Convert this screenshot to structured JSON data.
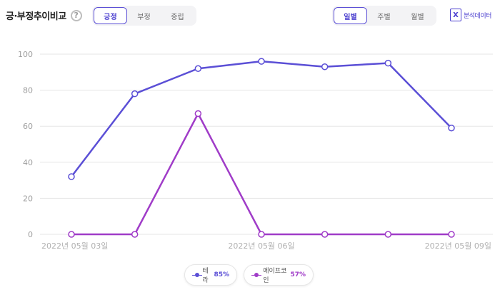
{
  "header": {
    "title": "긍·부정추이비교",
    "help_icon": "question-circle-icon",
    "sentiment_tabs": [
      {
        "label": "긍정",
        "active": true
      },
      {
        "label": "부정",
        "active": false
      },
      {
        "label": "중립",
        "active": false
      }
    ],
    "period_tabs": [
      {
        "label": "일별",
        "active": true
      },
      {
        "label": "주별",
        "active": false
      },
      {
        "label": "월별",
        "active": false
      }
    ],
    "export": {
      "label": "분석데이터",
      "icon": "excel-icon"
    }
  },
  "colors": {
    "accent": "#5b4fd6",
    "series1": "#5b4fd6",
    "series2": "#a03cc8",
    "grid": "#e5e5e5",
    "axis_text": "#9e9e9e"
  },
  "chart_data": {
    "type": "line",
    "x": [
      "2022-05-03",
      "2022-05-04",
      "2022-05-05",
      "2022-05-06",
      "2022-05-07",
      "2022-05-08",
      "2022-05-09"
    ],
    "x_tick_labels": [
      {
        "index": 0,
        "label": "2022년 05월 03일"
      },
      {
        "index": 3,
        "label": "2022년 05월 06일"
      },
      {
        "index": 6,
        "label": "2022년 05월 09일"
      }
    ],
    "series": [
      {
        "name": "테라",
        "percent": "85%",
        "values": [
          32,
          78,
          92,
          96,
          93,
          95,
          59
        ]
      },
      {
        "name": "에이프코인",
        "percent": "57%",
        "values": [
          0,
          0,
          67,
          0,
          0,
          0,
          0
        ]
      }
    ],
    "ylim": [
      0,
      100
    ],
    "yticks": [
      0,
      20,
      40,
      60,
      80,
      100
    ],
    "grid": true,
    "legend_position": "bottom-center",
    "title": "",
    "xlabel": "",
    "ylabel": ""
  }
}
